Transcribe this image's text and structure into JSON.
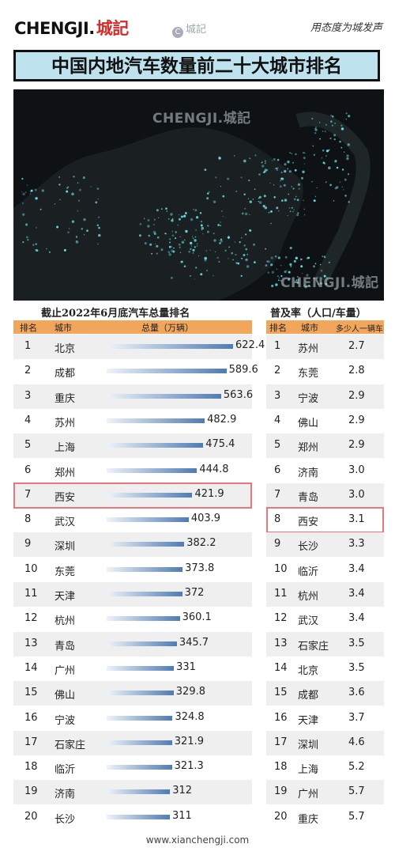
{
  "header": {
    "logo_en": "CHENGJI.",
    "logo_zh": "城記",
    "watermark_icon": "C",
    "watermark_text": "城記",
    "slogan": "用态度为城发声"
  },
  "title": "中国内地汽车数量前二十大城市排名",
  "map": {
    "watermark1": "CHENGJI.城記",
    "watermark2": "CHENGJI.城記"
  },
  "footer": "www.xianchengji.com",
  "colors": {
    "header_bg": "#f2a65c",
    "title_bg": "#bfe3ee",
    "bar": "#4f7bb5",
    "highlight": "#e8767a"
  },
  "chart_data": [
    {
      "type": "bar",
      "title": "截止2022年6月底汽车总量排名",
      "headers": [
        "排名",
        "城市",
        "总量（万辆）"
      ],
      "ranks": [
        "1",
        "2",
        "3",
        "4",
        "5",
        "6",
        "7",
        "8",
        "9",
        "10",
        "11",
        "12",
        "13",
        "14",
        "15",
        "16",
        "17",
        "18",
        "19",
        "20"
      ],
      "categories": [
        "北京",
        "成都",
        "重庆",
        "苏州",
        "上海",
        "郑州",
        "西安",
        "武汉",
        "深圳",
        "东莞",
        "天津",
        "杭州",
        "青岛",
        "广州",
        "佛山",
        "宁波",
        "石家庄",
        "临沂",
        "济南",
        "长沙"
      ],
      "values": [
        622.4,
        589.6,
        563.6,
        482.9,
        475.4,
        444.8,
        421.9,
        403.9,
        382.2,
        373.8,
        372,
        360.1,
        345.7,
        331,
        329.8,
        324.8,
        321.9,
        321.3,
        312,
        311
      ],
      "highlight": "西安"
    },
    {
      "type": "table",
      "title": "普及率（人口/车量）",
      "headers": [
        "排名",
        "城市",
        "多少人一辆车"
      ],
      "ranks": [
        "1",
        "2",
        "3",
        "4",
        "5",
        "6",
        "7",
        "8",
        "9",
        "10",
        "11",
        "12",
        "13",
        "14",
        "15",
        "16",
        "17",
        "18",
        "19",
        "20"
      ],
      "categories": [
        "苏州",
        "东莞",
        "宁波",
        "佛山",
        "郑州",
        "济南",
        "青岛",
        "西安",
        "长沙",
        "临沂",
        "杭州",
        "武汉",
        "石家庄",
        "北京",
        "成都",
        "天津",
        "深圳",
        "上海",
        "广州",
        "重庆"
      ],
      "values": [
        "2.7",
        "2.8",
        "2.9",
        "2.9",
        "2.9",
        "3.0",
        "3.0",
        "3.1",
        "3.3",
        "3.4",
        "3.4",
        "3.4",
        "3.5",
        "3.5",
        "3.6",
        "3.7",
        "4.6",
        "5.2",
        "5.7",
        "5.7"
      ],
      "highlight": "西安"
    }
  ]
}
